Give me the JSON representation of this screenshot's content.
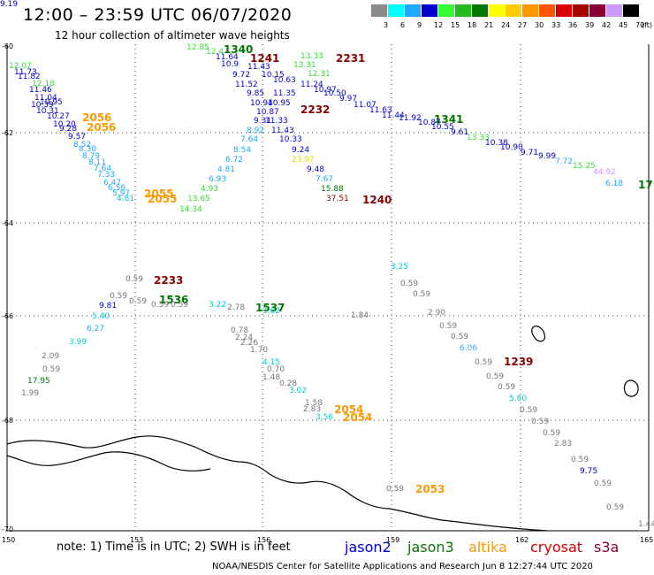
{
  "header": {
    "title": "12:00 – 23:59 UTC 06/07/2020",
    "subtitle": "12 hour collection of altimeter wave heights"
  },
  "colorbar": {
    "unit_label": "(ft)",
    "bins": [
      {
        "label": "3",
        "color": "#8a8a8a"
      },
      {
        "label": "6",
        "color": "#00ffff"
      },
      {
        "label": "9",
        "color": "#1fa8ff"
      },
      {
        "label": "12",
        "color": "#0000cc"
      },
      {
        "label": "15",
        "color": "#33ff33"
      },
      {
        "label": "18",
        "color": "#22bb22"
      },
      {
        "label": "21",
        "color": "#007700"
      },
      {
        "label": "24",
        "color": "#ffff00"
      },
      {
        "label": "27",
        "color": "#ffcc00"
      },
      {
        "label": "30",
        "color": "#ff9900"
      },
      {
        "label": "33",
        "color": "#ff5500"
      },
      {
        "label": "36",
        "color": "#dd0000"
      },
      {
        "label": "39",
        "color": "#aa0000"
      },
      {
        "label": "42",
        "color": "#880033"
      },
      {
        "label": "45",
        "color": "#cc99ff"
      },
      {
        "label": "70",
        "color": "#000000"
      }
    ]
  },
  "axes": {
    "lon_ticks": [
      "150",
      "153",
      "156",
      "159",
      "162",
      "165"
    ],
    "lat_ticks": [
      "-60",
      "-62",
      "-64",
      "-66",
      "-68",
      "-70"
    ]
  },
  "note": "note: 1) Time is in UTC; 2) SWH is in feet",
  "legend": [
    {
      "name": "jason2",
      "color": "#0000cc"
    },
    {
      "name": "jason3",
      "color": "#007700"
    },
    {
      "name": "altika",
      "color": "#ff9900"
    },
    {
      "name": "cryosat",
      "color": "#cc0000"
    },
    {
      "name": "s3a",
      "color": "#880033"
    }
  ],
  "credit": "NOAA/NESDIS Center for Satellite Applications and Research   Jun  8 12:27:44 UTC 2020",
  "colors": {
    "grey": "#777777",
    "cyan": "#00cccc",
    "ltblue": "#1fa8ff",
    "blue": "#0000cc",
    "green": "#33dd33",
    "dkgreen": "#007700",
    "yellow": "#dddd00",
    "orange": "#ff9900",
    "dkred": "#880000",
    "lavender": "#cc99ff",
    "black": "#000000"
  },
  "time_labels": [
    {
      "text": "1340",
      "c": "dkgreen"
    },
    {
      "text": "1241",
      "c": "dkred"
    },
    {
      "text": "2231",
      "c": "dkred"
    },
    {
      "text": "2232",
      "c": "dkred"
    },
    {
      "text": "2056",
      "c": "orange"
    },
    {
      "text": "2056",
      "c": "orange"
    },
    {
      "text": "1341",
      "c": "dkgreen"
    },
    {
      "text": "2055",
      "c": "orange"
    },
    {
      "text": "2055",
      "c": "orange"
    },
    {
      "text": "1240",
      "c": "dkred"
    },
    {
      "text": "2233",
      "c": "dkred"
    },
    {
      "text": "1536",
      "c": "dkgreen"
    },
    {
      "text": "1537",
      "c": "dkgreen"
    },
    {
      "text": "1239",
      "c": "dkred"
    },
    {
      "text": "2054",
      "c": "orange"
    },
    {
      "text": "2054",
      "c": "orange"
    },
    {
      "text": "2053",
      "c": "orange"
    },
    {
      "text": "17",
      "c": "dkgreen"
    }
  ],
  "swh_labels": [
    {
      "text": "12.85",
      "c": "green"
    },
    {
      "text": "12.4",
      "c": "green"
    },
    {
      "text": "11.64",
      "c": "blue"
    },
    {
      "text": "10.9",
      "c": "blue"
    },
    {
      "text": "11.43",
      "c": "blue"
    },
    {
      "text": "9.72",
      "c": "blue"
    },
    {
      "text": "10.15",
      "c": "blue"
    },
    {
      "text": "10.63",
      "c": "blue"
    },
    {
      "text": "11.52",
      "c": "blue"
    },
    {
      "text": "9.85",
      "c": "blue"
    },
    {
      "text": "11.35",
      "c": "blue"
    },
    {
      "text": "10.94",
      "c": "blue"
    },
    {
      "text": "10.95",
      "c": "blue"
    },
    {
      "text": "10.87",
      "c": "blue"
    },
    {
      "text": "9.31",
      "c": "blue"
    },
    {
      "text": "11.33",
      "c": "blue"
    },
    {
      "text": "8.92",
      "c": "ltblue"
    },
    {
      "text": "11.43",
      "c": "blue"
    },
    {
      "text": "7.64",
      "c": "ltblue"
    },
    {
      "text": "10.33",
      "c": "blue"
    },
    {
      "text": "8.54",
      "c": "ltblue"
    },
    {
      "text": "9.24",
      "c": "blue"
    },
    {
      "text": "6.72",
      "c": "ltblue"
    },
    {
      "text": "23.97",
      "c": "yellow"
    },
    {
      "text": "4.81",
      "c": "ltblue"
    },
    {
      "text": "9.48",
      "c": "blue"
    },
    {
      "text": "6.93",
      "c": "ltblue"
    },
    {
      "text": "7.67",
      "c": "ltblue"
    },
    {
      "text": "4.93",
      "c": "green"
    },
    {
      "text": "15.88",
      "c": "dkgreen"
    },
    {
      "text": "13.65",
      "c": "green"
    },
    {
      "text": "37.51",
      "c": "dkred"
    },
    {
      "text": "14.34",
      "c": "green"
    },
    {
      "text": "13.33",
      "c": "green"
    },
    {
      "text": "13.31",
      "c": "green"
    },
    {
      "text": "12.31",
      "c": "green"
    },
    {
      "text": "11.24",
      "c": "blue"
    },
    {
      "text": "10.97",
      "c": "blue"
    },
    {
      "text": "10.50",
      "c": "blue"
    },
    {
      "text": "9.97",
      "c": "blue"
    },
    {
      "text": "11.07",
      "c": "blue"
    },
    {
      "text": "11.63",
      "c": "blue"
    },
    {
      "text": "11.44",
      "c": "blue"
    },
    {
      "text": "11.92",
      "c": "blue"
    },
    {
      "text": "10.87",
      "c": "blue"
    },
    {
      "text": "10.55",
      "c": "blue"
    },
    {
      "text": "9.61",
      "c": "blue"
    },
    {
      "text": "13.33",
      "c": "green"
    },
    {
      "text": "10.38",
      "c": "blue"
    },
    {
      "text": "10.90",
      "c": "blue"
    },
    {
      "text": "9.71",
      "c": "blue"
    },
    {
      "text": "9.99",
      "c": "blue"
    },
    {
      "text": "7.72",
      "c": "ltblue"
    },
    {
      "text": "15.25",
      "c": "green"
    },
    {
      "text": "44.92",
      "c": "lavender"
    },
    {
      "text": "6.18",
      "c": "ltblue"
    },
    {
      "text": "12.07",
      "c": "green"
    },
    {
      "text": "11.73",
      "c": "blue"
    },
    {
      "text": "11.82",
      "c": "blue"
    },
    {
      "text": "12.18",
      "c": "green"
    },
    {
      "text": "11.46",
      "c": "blue"
    },
    {
      "text": "11.04",
      "c": "blue"
    },
    {
      "text": "10.95",
      "c": "blue"
    },
    {
      "text": "10.39",
      "c": "blue"
    },
    {
      "text": "10.31",
      "c": "blue"
    },
    {
      "text": "10.27",
      "c": "blue"
    },
    {
      "text": "10.20",
      "c": "blue"
    },
    {
      "text": "9.28",
      "c": "blue"
    },
    {
      "text": "9.57",
      "c": "blue"
    },
    {
      "text": "8.52",
      "c": "ltblue"
    },
    {
      "text": "8.30",
      "c": "ltblue"
    },
    {
      "text": "8.79",
      "c": "ltblue"
    },
    {
      "text": "8.11",
      "c": "ltblue"
    },
    {
      "text": "7.64",
      "c": "ltblue"
    },
    {
      "text": "7.33",
      "c": "ltblue"
    },
    {
      "text": "6.47",
      "c": "ltblue"
    },
    {
      "text": "6.56",
      "c": "ltblue"
    },
    {
      "text": "5.97",
      "c": "ltblue"
    },
    {
      "text": "4.81",
      "c": "cyan"
    },
    {
      "text": "0.59",
      "c": "grey"
    },
    {
      "text": "0.59",
      "c": "grey"
    },
    {
      "text": "0.59",
      "c": "grey"
    },
    {
      "text": "0.59",
      "c": "grey"
    },
    {
      "text": "0.59",
      "c": "grey"
    },
    {
      "text": "9.81",
      "c": "blue"
    },
    {
      "text": "5.40",
      "c": "cyan"
    },
    {
      "text": "6.27",
      "c": "ltblue"
    },
    {
      "text": "3.99",
      "c": "cyan"
    },
    {
      "text": "2.09",
      "c": "grey"
    },
    {
      "text": "0.59",
      "c": "grey"
    },
    {
      "text": "17.95",
      "c": "dkgreen"
    },
    {
      "text": "1.99",
      "c": "grey"
    },
    {
      "text": "3.22",
      "c": "cyan"
    },
    {
      "text": "2.78",
      "c": "grey"
    },
    {
      "text": "3.02",
      "c": "cyan"
    },
    {
      "text": "1.84",
      "c": "grey"
    },
    {
      "text": "0.78",
      "c": "grey"
    },
    {
      "text": "2.24",
      "c": "grey"
    },
    {
      "text": "2.26",
      "c": "grey"
    },
    {
      "text": "1.70",
      "c": "grey"
    },
    {
      "text": "4.15",
      "c": "cyan"
    },
    {
      "text": "0.70",
      "c": "grey"
    },
    {
      "text": "1.48",
      "c": "grey"
    },
    {
      "text": "0.28",
      "c": "grey"
    },
    {
      "text": "3.02",
      "c": "cyan"
    },
    {
      "text": "1.58",
      "c": "grey"
    },
    {
      "text": "2.83",
      "c": "grey"
    },
    {
      "text": "3.56",
      "c": "cyan"
    },
    {
      "text": "3.25",
      "c": "cyan"
    },
    {
      "text": "0.59",
      "c": "grey"
    },
    {
      "text": "0.59",
      "c": "grey"
    },
    {
      "text": "2.90",
      "c": "grey"
    },
    {
      "text": "0.59",
      "c": "grey"
    },
    {
      "text": "0.59",
      "c": "grey"
    },
    {
      "text": "6.06",
      "c": "ltblue"
    },
    {
      "text": "0.59",
      "c": "grey"
    },
    {
      "text": "0.59",
      "c": "grey"
    },
    {
      "text": "0.59",
      "c": "grey"
    },
    {
      "text": "5.80",
      "c": "cyan"
    },
    {
      "text": "0.59",
      "c": "grey"
    },
    {
      "text": "0.59",
      "c": "grey"
    },
    {
      "text": "0.59",
      "c": "grey"
    },
    {
      "text": "2.83",
      "c": "grey"
    },
    {
      "text": "0.59",
      "c": "grey"
    },
    {
      "text": "9.75",
      "c": "blue"
    },
    {
      "text": "0.59",
      "c": "grey"
    },
    {
      "text": "0.59",
      "c": "grey"
    },
    {
      "text": "1.44",
      "c": "grey"
    },
    {
      "text": "0.59",
      "c": "grey"
    },
    {
      "text": "9.19",
      "c": "blue"
    }
  ]
}
